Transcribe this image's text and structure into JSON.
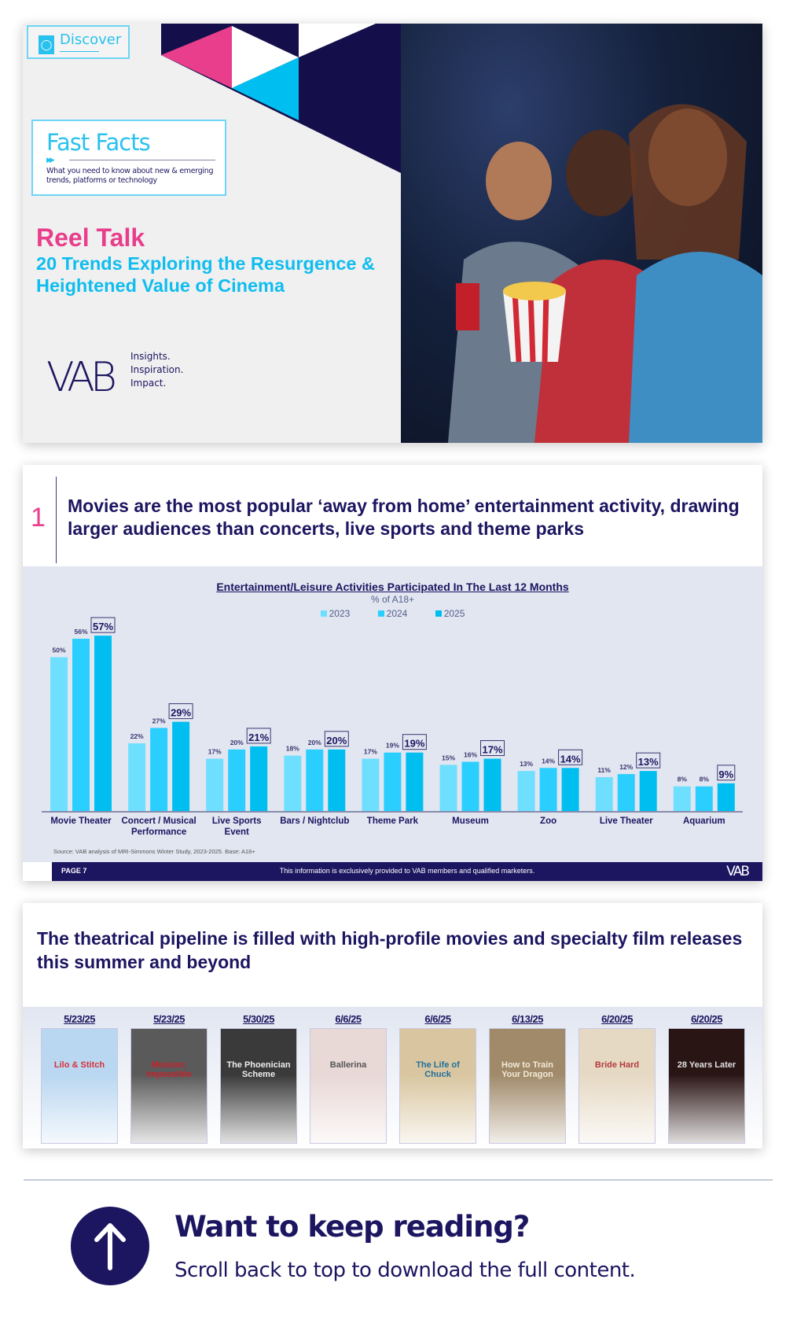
{
  "cover": {
    "discover_label": "Discover",
    "fast_facts_title": "Fast Facts",
    "fast_facts_desc": "What you need to know about new & emerging trends, platforms or technology",
    "title": "Reel Talk",
    "subtitle": "20 Trends Exploring the Resurgence & Heightened Value of Cinema",
    "logo": "VAB",
    "tagline": [
      "Insights.",
      "Inspiration.",
      "Impact."
    ],
    "colors": {
      "navy": "#1c1560",
      "pink": "#e83e8c",
      "cyan": "#0fbdef"
    }
  },
  "slide1": {
    "number": "1",
    "heading": "Movies are the most popular ‘away from home’ entertainment activity, drawing larger audiences than concerts, live sports and theme parks",
    "source": "Source: VAB analysis of MRI-Simmons Winter Study, 2023-2025. Base: A18+",
    "footer_page": "PAGE 7",
    "footer_text": "This information is exclusively provided to VAB members and qualified marketers.",
    "footer_logo": "VAB"
  },
  "chart_data": {
    "type": "bar",
    "title": "Entertainment/Leisure Activities Participated In The Last 12 Months",
    "subtitle": "% of A18+",
    "xlabel": "",
    "ylabel": "",
    "ylim": [
      0,
      60
    ],
    "legend_position": "top-center",
    "categories": [
      "Movie Theater",
      "Concert / Musical Performance",
      "Live Sports Event",
      "Bars / Nightclub",
      "Theme Park",
      "Museum",
      "Zoo",
      "Live Theater",
      "Aquarium"
    ],
    "series": [
      {
        "name": "2023",
        "color": "#6fdfff",
        "values": [
          50,
          22,
          17,
          18,
          17,
          15,
          13,
          11,
          8
        ]
      },
      {
        "name": "2024",
        "color": "#2bcfff",
        "values": [
          56,
          27,
          20,
          20,
          19,
          16,
          14,
          12,
          8
        ]
      },
      {
        "name": "2025",
        "color": "#00bff0",
        "values": [
          57,
          29,
          21,
          20,
          19,
          17,
          14,
          13,
          9
        ]
      }
    ]
  },
  "slide2": {
    "heading": "The theatrical pipeline is filled with high-profile movies and specialty film releases this summer and beyond",
    "releases": [
      {
        "date": "5/23/25",
        "title": "Lilo & Stitch",
        "bg": "#b9d7f0",
        "fg": "#d8313b"
      },
      {
        "date": "5/23/25",
        "title": "Mission: Impossible",
        "bg": "#5a5a5a",
        "fg": "#c8202a"
      },
      {
        "date": "5/30/25",
        "title": "The Phoenician Scheme",
        "bg": "#3a3a3a",
        "fg": "#eeeeee"
      },
      {
        "date": "6/6/25",
        "title": "Ballerina",
        "bg": "#e8d8d6",
        "fg": "#555555"
      },
      {
        "date": "6/6/25",
        "title": "The Life of Chuck",
        "bg": "#d9c6a0",
        "fg": "#1f6f9a"
      },
      {
        "date": "6/13/25",
        "title": "How to Train Your Dragon",
        "bg": "#a08a6a",
        "fg": "#f3ead8"
      },
      {
        "date": "6/20/25",
        "title": "Bride Hard",
        "bg": "#e6d9c4",
        "fg": "#b23b3b"
      },
      {
        "date": "6/20/25",
        "title": "28 Years Later",
        "bg": "#2a1515",
        "fg": "#e0e0e0"
      }
    ]
  },
  "cta": {
    "heading": "Want to keep reading?",
    "text": "Scroll back to top to download the full content."
  }
}
